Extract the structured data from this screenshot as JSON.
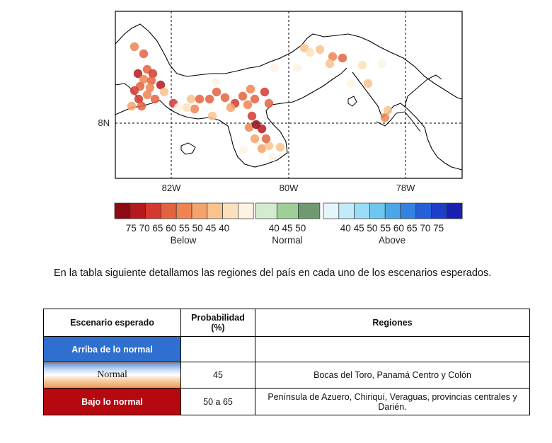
{
  "map": {
    "lat_labels": [
      "8N"
    ],
    "lon_labels": [
      "82W",
      "80W",
      "78W"
    ],
    "colors": {
      "below": [
        "#8c0a12",
        "#b5181e",
        "#d23a2f",
        "#e3633f",
        "#ee8450",
        "#f4a36a",
        "#f8c38e",
        "#fbe0bd",
        "#fdf3e3"
      ],
      "normal": [
        "#d3ecd0",
        "#9fcf99",
        "#6f9a6f"
      ],
      "above": [
        "#e4f5fc",
        "#c2eaf9",
        "#9bdcf6",
        "#6dc6ef",
        "#4aa6e8",
        "#3482e2",
        "#2660d8",
        "#1c3ec9",
        "#1820b0"
      ]
    },
    "stations_legend_bins": "below"
  },
  "legend": {
    "below": {
      "ticks": "75 70 65 60 55 50 45 40",
      "label": "Below"
    },
    "normal": {
      "ticks": "40 45 50",
      "label": "Normal"
    },
    "above": {
      "ticks": "40 45 50 55 60 65 70 75",
      "label": "Above"
    }
  },
  "paragraph": "En la tabla siguiente detallamos las regiones del país en cada uno de los escenarios esperados.",
  "table": {
    "headers": [
      "Escenario esperado",
      "Probabilidad (%)",
      "Regiones"
    ],
    "rows": [
      {
        "escenario": "Arriba de lo normal",
        "probabilidad": "",
        "regiones": ""
      },
      {
        "escenario": "Normal",
        "probabilidad": "45",
        "regiones": "Bocas del Toro, Panamá Centro y Colón"
      },
      {
        "escenario": "Bajo lo normal",
        "probabilidad": "50 a 65",
        "regiones": "Península de Azuero, Chiriquí, Veraguas, provincias centrales y Darién."
      }
    ]
  }
}
